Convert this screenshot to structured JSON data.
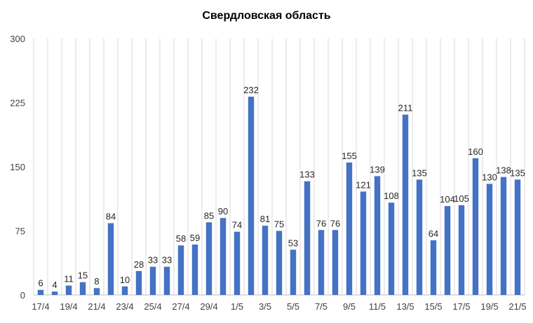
{
  "chart_data": {
    "type": "bar",
    "title": "Свердловская область",
    "xlabel": "",
    "ylabel": "",
    "ylim": [
      0,
      300
    ],
    "yticks": [
      0,
      75,
      150,
      225,
      300
    ],
    "grid": "vertical",
    "legend": "none",
    "bar_color": "#4472C4",
    "categories": [
      "17/4",
      "18/4",
      "19/4",
      "20/4",
      "21/4",
      "22/4",
      "23/4",
      "24/4",
      "25/4",
      "26/4",
      "27/4",
      "28/4",
      "29/4",
      "30/4",
      "1/5",
      "2/5",
      "3/5",
      "4/5",
      "5/5",
      "6/5",
      "7/5",
      "8/5",
      "9/5",
      "10/5",
      "11/5",
      "12/5",
      "13/5",
      "14/5",
      "15/5",
      "16/5",
      "17/5",
      "18/5",
      "19/5",
      "20/5",
      "21/5"
    ],
    "tick_labels": [
      "17/4",
      "",
      "19/4",
      "",
      "21/4",
      "",
      "23/4",
      "",
      "25/4",
      "",
      "27/4",
      "",
      "29/4",
      "",
      "1/5",
      "",
      "3/5",
      "",
      "5/5",
      "",
      "7/5",
      "",
      "9/5",
      "",
      "11/5",
      "",
      "13/5",
      "",
      "15/5",
      "",
      "17/5",
      "",
      "19/5",
      "",
      "21/5"
    ],
    "values": [
      6,
      4,
      11,
      15,
      8,
      84,
      10,
      28,
      33,
      33,
      58,
      59,
      85,
      90,
      74,
      232,
      81,
      75,
      53,
      133,
      76,
      76,
      155,
      121,
      139,
      108,
      211,
      135,
      64,
      104,
      105,
      160,
      130,
      138,
      135
    ]
  }
}
